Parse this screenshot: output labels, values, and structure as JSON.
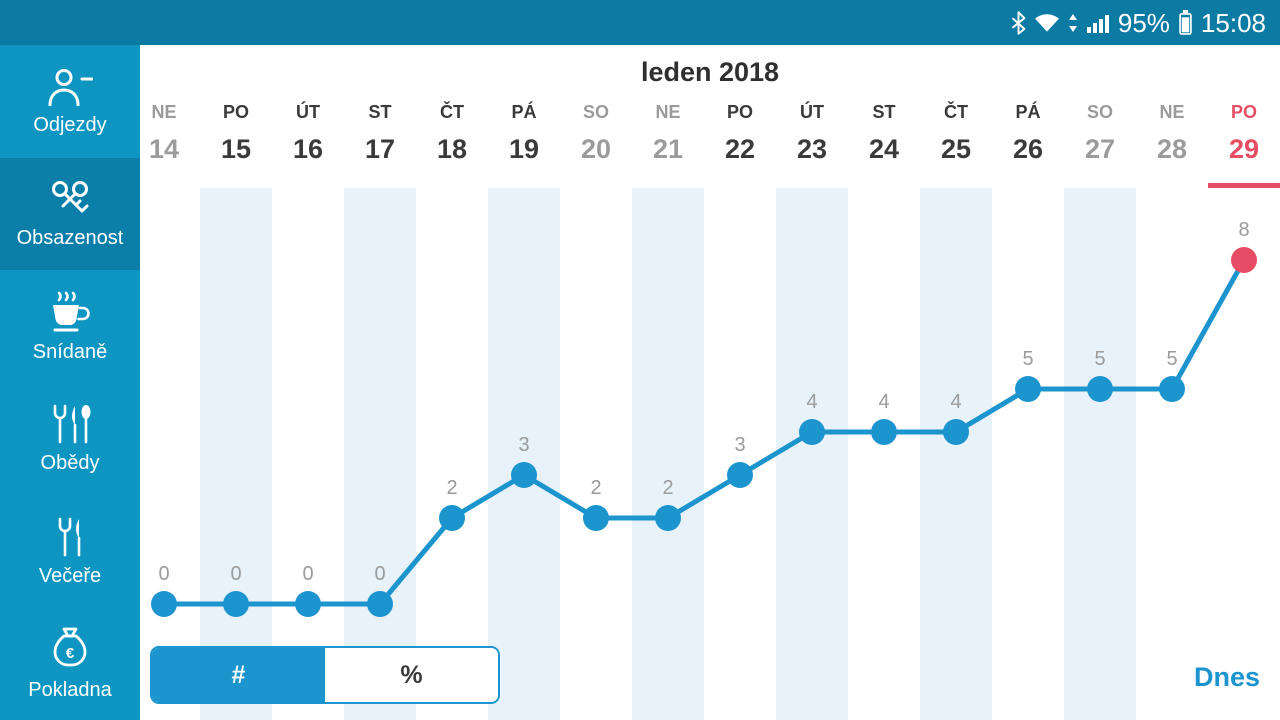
{
  "status_bar": {
    "time": "15:08",
    "battery_percent": "95%",
    "icons": [
      "bluetooth-icon",
      "wifi-icon",
      "wifi-activity-arrows-icon",
      "signal-strength-icon",
      "battery-icon"
    ]
  },
  "sidebar": {
    "items": [
      {
        "label": "Odjezdy",
        "icon": "guest-departure-icon",
        "selected": false
      },
      {
        "label": "Obsazenost",
        "icon": "keys-icon",
        "selected": true
      },
      {
        "label": "Snídaně",
        "icon": "coffee-cup-icon",
        "selected": false
      },
      {
        "label": "Obědy",
        "icon": "cutlery-trio-icon",
        "selected": false
      },
      {
        "label": "Večeře",
        "icon": "fork-knife-icon",
        "selected": false
      },
      {
        "label": "Pokladna",
        "icon": "money-bag-icon",
        "selected": false
      }
    ]
  },
  "main": {
    "title": "leden 2018",
    "toggle": {
      "count_label": "#",
      "percent_label": "%",
      "selected": "count"
    },
    "today_label": "Dnes"
  },
  "theme": {
    "statusbar_bg": "#0b7ba3",
    "sidebar_bg": "#0e95c2",
    "selected_item_bg": "#0b7fa9",
    "accent": "#1c94ce",
    "today_red": "#e64d64",
    "stripe_bg": "#e7f2fa",
    "muted_text": "#9b9b9b"
  },
  "chart_data": {
    "type": "line",
    "title": "leden 2018",
    "categories": [
      {
        "name": "NE",
        "day": "14",
        "kind": "weekend",
        "stripe": false
      },
      {
        "name": "PO",
        "day": "15",
        "kind": "weekday",
        "stripe": true
      },
      {
        "name": "ÚT",
        "day": "16",
        "kind": "weekday",
        "stripe": false
      },
      {
        "name": "ST",
        "day": "17",
        "kind": "weekday",
        "stripe": true
      },
      {
        "name": "ČT",
        "day": "18",
        "kind": "weekday",
        "stripe": false
      },
      {
        "name": "PÁ",
        "day": "19",
        "kind": "weekday",
        "stripe": true
      },
      {
        "name": "SO",
        "day": "20",
        "kind": "weekend",
        "stripe": false
      },
      {
        "name": "NE",
        "day": "21",
        "kind": "weekend",
        "stripe": true
      },
      {
        "name": "PO",
        "day": "22",
        "kind": "weekday",
        "stripe": false
      },
      {
        "name": "ÚT",
        "day": "23",
        "kind": "weekday",
        "stripe": true
      },
      {
        "name": "ST",
        "day": "24",
        "kind": "weekday",
        "stripe": false
      },
      {
        "name": "ČT",
        "day": "25",
        "kind": "weekday",
        "stripe": true
      },
      {
        "name": "PÁ",
        "day": "26",
        "kind": "weekday",
        "stripe": false
      },
      {
        "name": "SO",
        "day": "27",
        "kind": "weekend",
        "stripe": true
      },
      {
        "name": "NE",
        "day": "28",
        "kind": "weekend",
        "stripe": false
      },
      {
        "name": "PO",
        "day": "29",
        "kind": "today",
        "stripe": false
      }
    ],
    "values": [
      0,
      0,
      0,
      0,
      2,
      3,
      2,
      2,
      3,
      4,
      4,
      4,
      5,
      5,
      5,
      8
    ],
    "point_labels": true,
    "xlabel": "",
    "ylabel": "",
    "ylim": [
      0,
      9
    ],
    "legend": "none",
    "grid": "alternating-column-stripes",
    "line_color": "#1c94ce",
    "today_color": "#e64d64",
    "stripe_color": "#e7f2fa"
  }
}
